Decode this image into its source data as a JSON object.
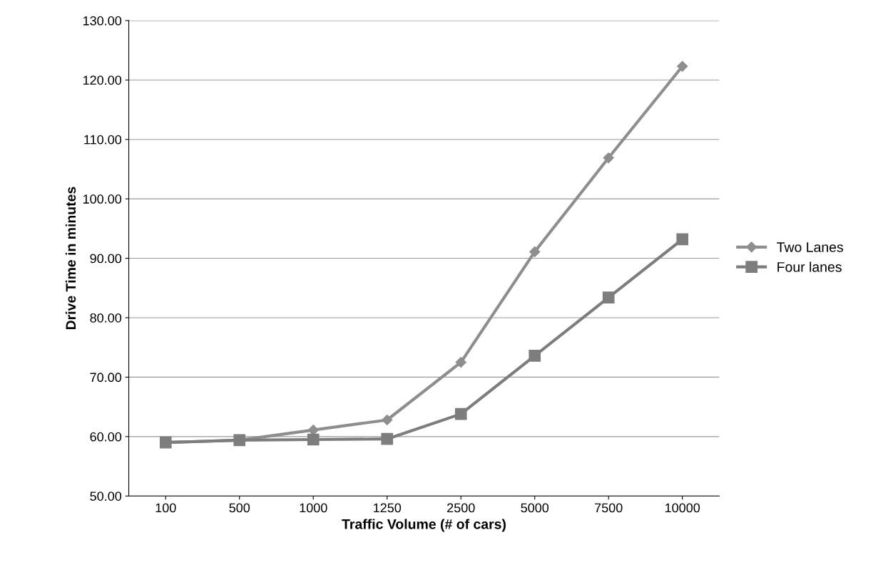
{
  "chart_data": {
    "type": "line",
    "xlabel": "Traffic Volume (# of cars)",
    "ylabel": "Drive Time in minutes",
    "categories": [
      "100",
      "500",
      "1000",
      "1250",
      "2500",
      "5000",
      "7500",
      "10000"
    ],
    "series": [
      {
        "name": "Two Lanes",
        "color": "#8e8e8e",
        "marker": "diamond",
        "values": [
          59.0,
          59.4,
          61.1,
          62.8,
          72.5,
          91.1,
          106.9,
          122.3
        ]
      },
      {
        "name": "Four lanes",
        "color": "#7d7d7d",
        "marker": "square",
        "values": [
          59.0,
          59.4,
          59.5,
          59.6,
          63.8,
          73.6,
          83.4,
          93.2
        ]
      }
    ],
    "ylim": [
      50,
      130
    ],
    "yticks": [
      {
        "value": 50,
        "label": "50.00"
      },
      {
        "value": 60,
        "label": "60.00"
      },
      {
        "value": 70,
        "label": "70.00"
      },
      {
        "value": 80,
        "label": "80.00"
      },
      {
        "value": 90,
        "label": "90.00"
      },
      {
        "value": 100,
        "label": "100.00"
      },
      {
        "value": 110,
        "label": "110.00"
      },
      {
        "value": 120,
        "label": "120.00"
      },
      {
        "value": 130,
        "label": "130.00"
      }
    ],
    "grid": "y",
    "legend": "right"
  }
}
